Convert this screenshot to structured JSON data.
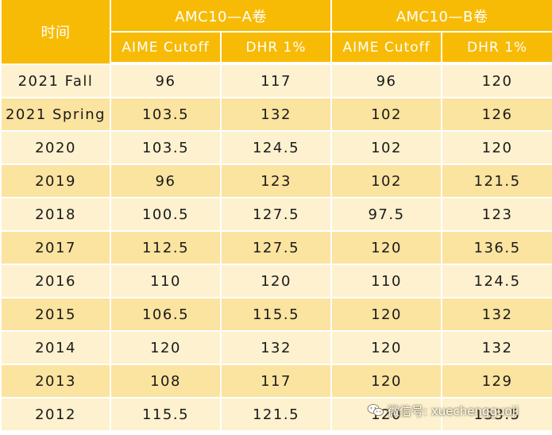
{
  "header": {
    "time_label": "时间",
    "group_a": "AMC10—A卷",
    "group_b": "AMC10—B卷",
    "sub": [
      "AIME Cutoff",
      "DHR 1%",
      "AIME Cutoff",
      "DHR 1%"
    ]
  },
  "rows": [
    [
      "2021 Fall",
      "96",
      "117",
      "96",
      "120"
    ],
    [
      "2021 Spring",
      "103.5",
      "132",
      "102",
      "126"
    ],
    [
      "2020",
      "103.5",
      "124.5",
      "102",
      "120"
    ],
    [
      "2019",
      "96",
      "123",
      "102",
      "121.5"
    ],
    [
      "2018",
      "100.5",
      "127.5",
      "97.5",
      "123"
    ],
    [
      "2017",
      "112.5",
      "127.5",
      "120",
      "136.5"
    ],
    [
      "2016",
      "110",
      "120",
      "110",
      "124.5"
    ],
    [
      "2015",
      "106.5",
      "115.5",
      "120",
      "132"
    ],
    [
      "2014",
      "120",
      "132",
      "120",
      "132"
    ],
    [
      "2013",
      "108",
      "117",
      "120",
      "129"
    ],
    [
      "2012",
      "115.5",
      "121.5",
      "120",
      "133.5"
    ]
  ],
  "watermark": {
    "icon": "wechat-icon",
    "text": "微信号: xuechengguoji"
  },
  "colors": {
    "header_bg": "#f7bb06",
    "row_light": "#fdf1cf",
    "row_dark": "#fbe3a0"
  }
}
